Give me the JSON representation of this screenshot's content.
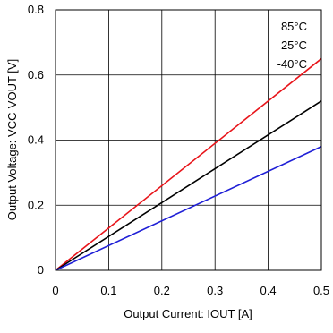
{
  "chart_data": {
    "type": "line",
    "title": "",
    "xlabel": "Output Current: IOUT [A]",
    "ylabel": "Output Voltage: VCC-VOUT [V]",
    "xlim": [
      0,
      0.5
    ],
    "ylim": [
      0,
      0.8
    ],
    "x_ticks": [
      "0",
      "0.1",
      "0.2",
      "0.3",
      "0.4",
      "0.5"
    ],
    "y_ticks": [
      "0",
      "0.2",
      "0.4",
      "0.6",
      "0.8"
    ],
    "grid": true,
    "legend_position": "top-right",
    "series": [
      {
        "name": "85°C",
        "color": "#e8141a",
        "x": [
          0,
          0.5
        ],
        "y": [
          0,
          0.65
        ]
      },
      {
        "name": "25°C",
        "color": "#000000",
        "x": [
          0,
          0.5
        ],
        "y": [
          0,
          0.52
        ]
      },
      {
        "name": "-40°C",
        "color": "#1f1fd6",
        "x": [
          0,
          0.5
        ],
        "y": [
          0,
          0.38
        ]
      }
    ]
  }
}
